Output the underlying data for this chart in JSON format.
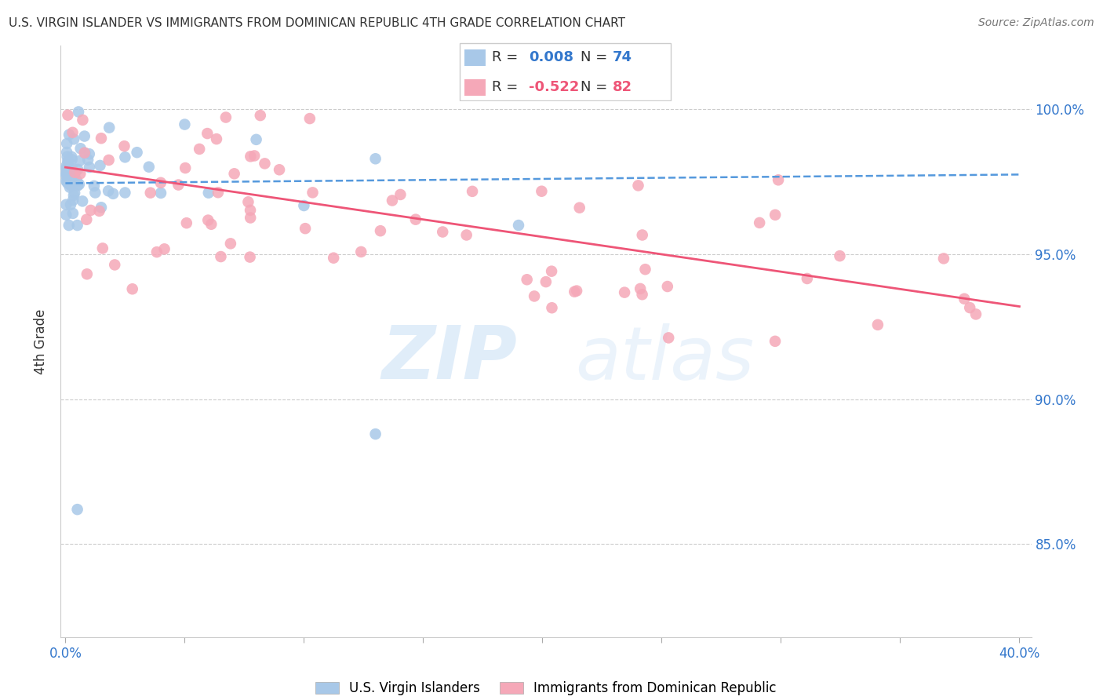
{
  "title": "U.S. VIRGIN ISLANDER VS IMMIGRANTS FROM DOMINICAN REPUBLIC 4TH GRADE CORRELATION CHART",
  "source": "Source: ZipAtlas.com",
  "ylabel": "4th Grade",
  "ytick_labels": [
    "100.0%",
    "95.0%",
    "90.0%",
    "85.0%"
  ],
  "ytick_values": [
    1.0,
    0.95,
    0.9,
    0.85
  ],
  "xlim": [
    -0.002,
    0.405
  ],
  "ylim": [
    0.818,
    1.022
  ],
  "blue_color": "#a8c8e8",
  "pink_color": "#f5a8b8",
  "blue_line_color": "#5599dd",
  "pink_line_color": "#ee5577",
  "blue_trend_x": [
    0.0,
    0.4
  ],
  "blue_trend_y": [
    0.9745,
    0.9775
  ],
  "pink_trend_x": [
    0.0,
    0.4
  ],
  "pink_trend_y": [
    0.98,
    0.932
  ],
  "watermark_zip": "ZIP",
  "watermark_atlas": "atlas",
  "grid_color": "#cccccc",
  "axis_color": "#cccccc",
  "text_color": "#333333",
  "blue_label": "U.S. Virgin Islanders",
  "pink_label": "Immigrants from Dominican Republic"
}
